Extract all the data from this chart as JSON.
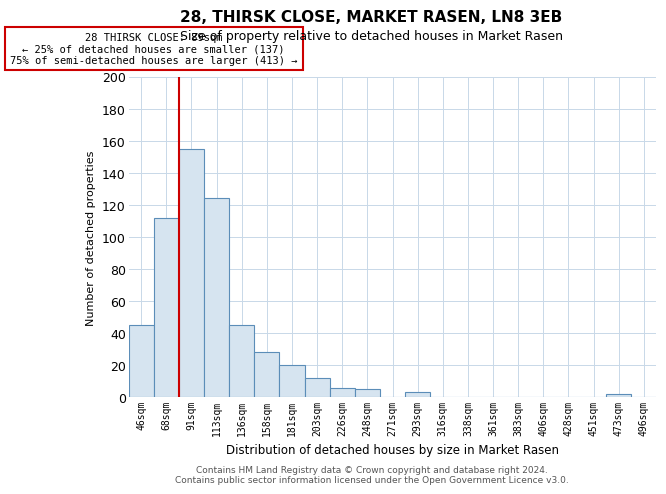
{
  "title": "28, THIRSK CLOSE, MARKET RASEN, LN8 3EB",
  "subtitle": "Size of property relative to detached houses in Market Rasen",
  "xlabel": "Distribution of detached houses by size in Market Rasen",
  "ylabel": "Number of detached properties",
  "footer_line1": "Contains HM Land Registry data © Crown copyright and database right 2024.",
  "footer_line2": "Contains public sector information licensed under the Open Government Licence v3.0.",
  "categories": [
    "46sqm",
    "68sqm",
    "91sqm",
    "113sqm",
    "136sqm",
    "158sqm",
    "181sqm",
    "203sqm",
    "226sqm",
    "248sqm",
    "271sqm",
    "293sqm",
    "316sqm",
    "338sqm",
    "361sqm",
    "383sqm",
    "406sqm",
    "428sqm",
    "451sqm",
    "473sqm",
    "496sqm"
  ],
  "values": [
    45,
    112,
    155,
    124,
    45,
    28,
    20,
    12,
    6,
    5,
    0,
    3,
    0,
    0,
    0,
    0,
    0,
    0,
    0,
    2,
    0
  ],
  "bar_color": "#d6e4f0",
  "bar_edge_color": "#5b8db8",
  "red_line_index": 2,
  "red_line_color": "#cc0000",
  "annotation_line1": "28 THIRSK CLOSE: 89sqm",
  "annotation_line2": "← 25% of detached houses are smaller (137)",
  "annotation_line3": "75% of semi-detached houses are larger (413) →",
  "annotation_box_color": "#ffffff",
  "annotation_box_edge_color": "#cc0000",
  "ylim": [
    0,
    200
  ],
  "yticks": [
    0,
    20,
    40,
    60,
    80,
    100,
    120,
    140,
    160,
    180,
    200
  ],
  "background_color": "#ffffff",
  "grid_color": "#c8d8e8"
}
